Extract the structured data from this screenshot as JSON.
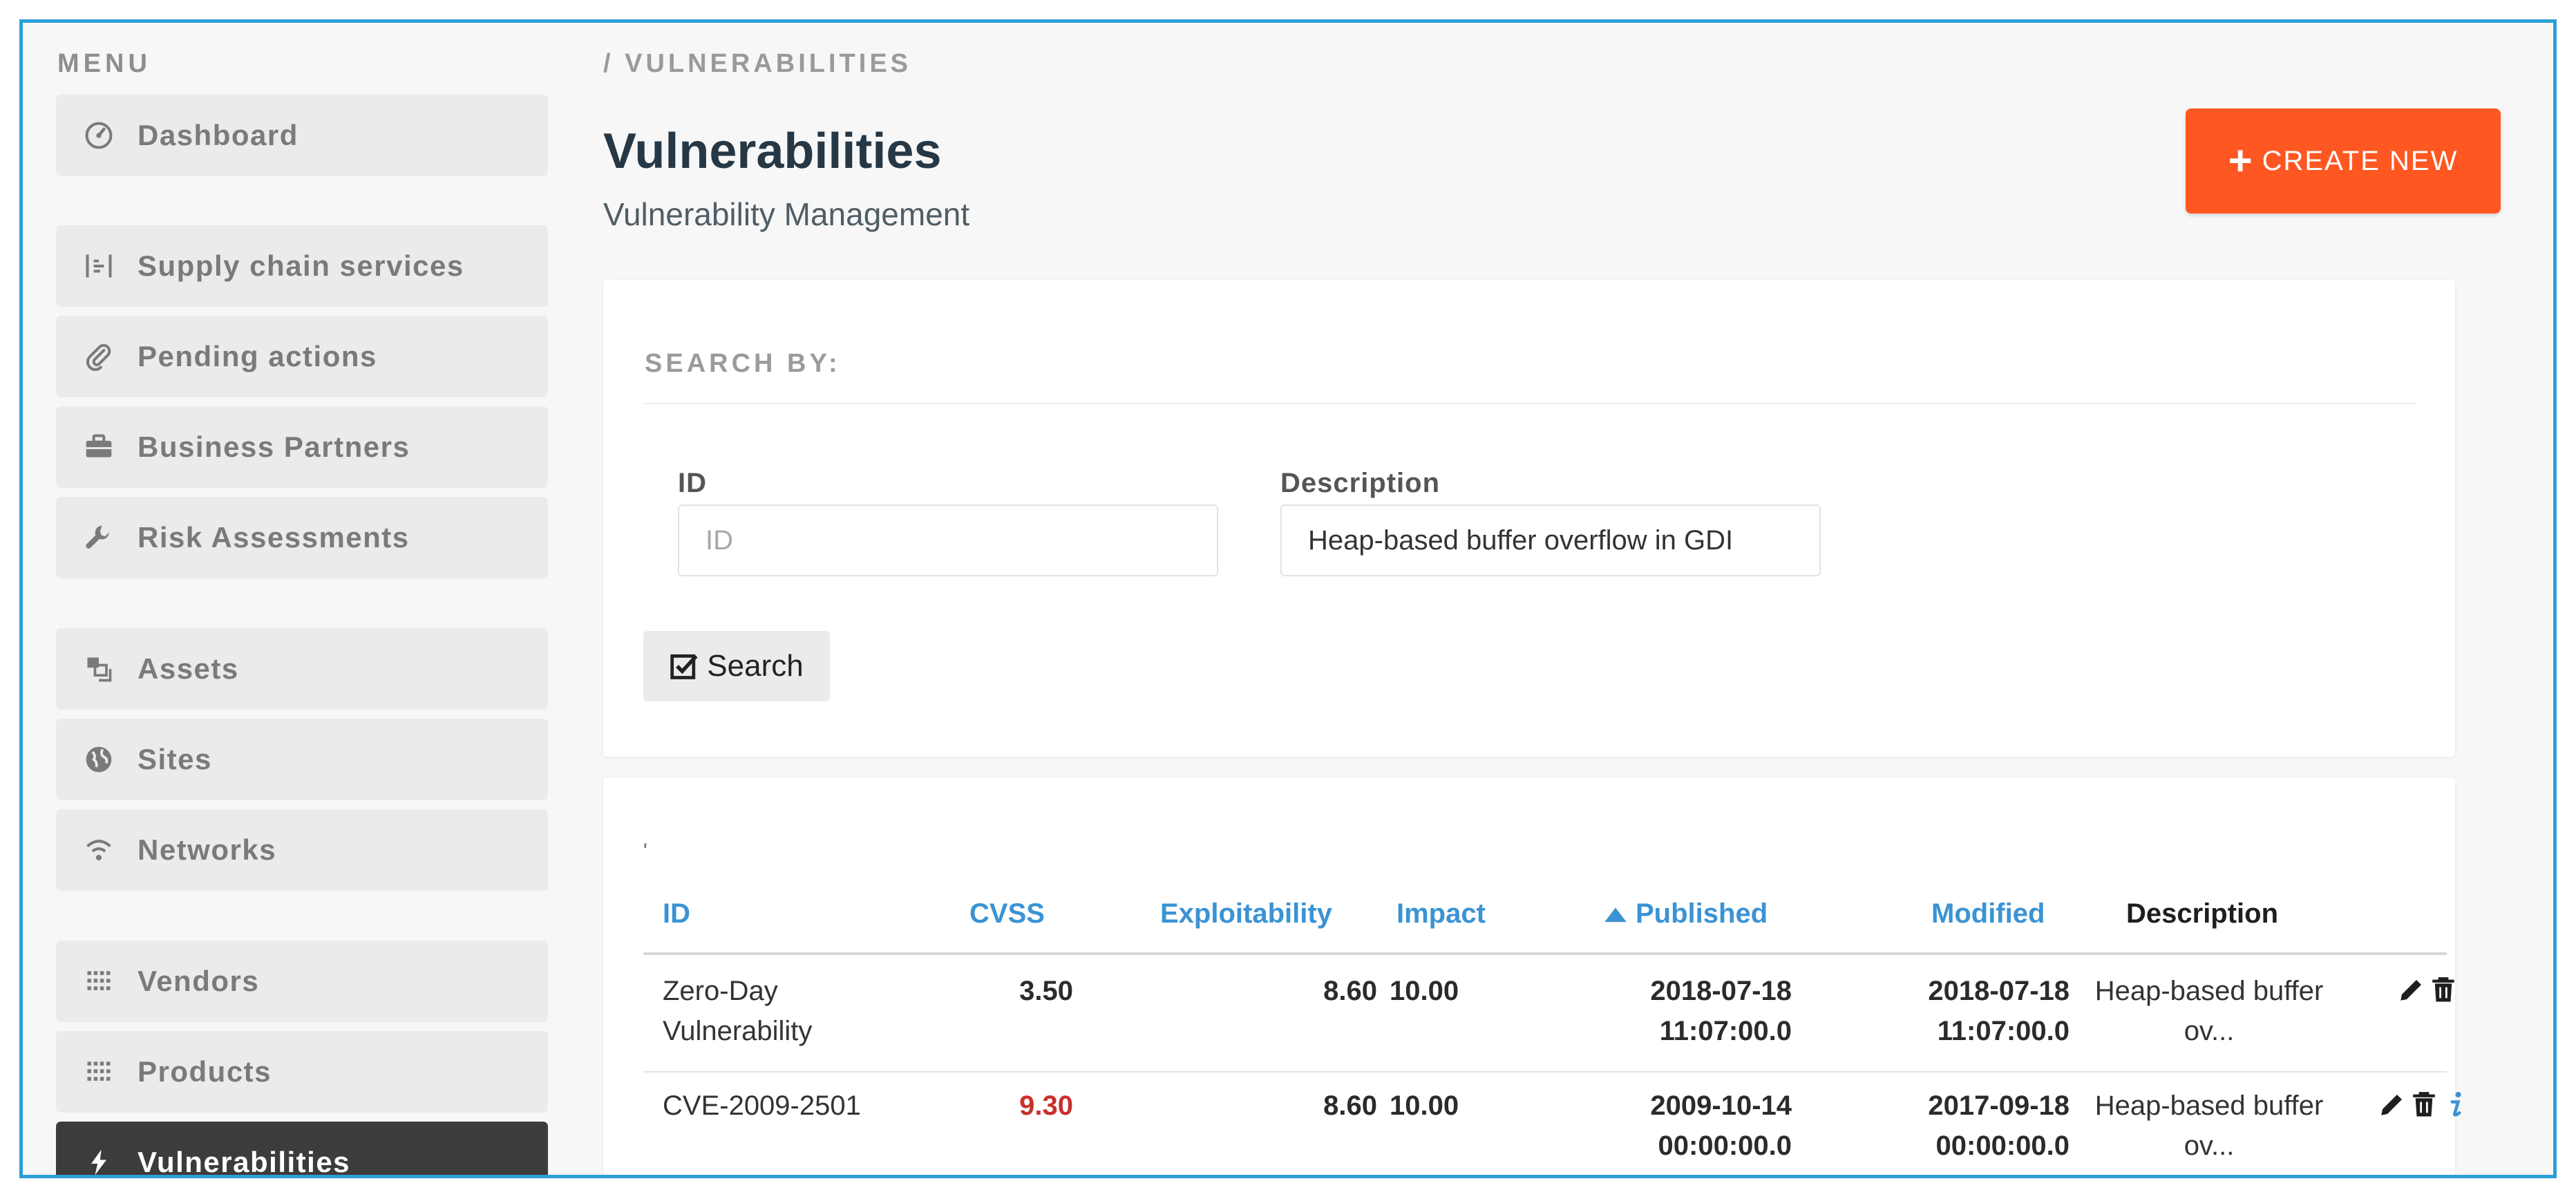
{
  "sidebar": {
    "title": "MENU",
    "items": [
      {
        "label": "Dashboard",
        "icon": "dashboard-icon"
      },
      {
        "label": "Supply chain services",
        "icon": "supply-chain-icon"
      },
      {
        "label": "Pending actions",
        "icon": "paperclip-icon"
      },
      {
        "label": "Business Partners",
        "icon": "briefcase-icon"
      },
      {
        "label": "Risk Assessments",
        "icon": "wrench-icon"
      },
      {
        "label": "Assets",
        "icon": "assets-icon"
      },
      {
        "label": "Sites",
        "icon": "globe-icon"
      },
      {
        "label": "Networks",
        "icon": "wifi-icon"
      },
      {
        "label": "Vendors",
        "icon": "grid-icon"
      },
      {
        "label": "Products",
        "icon": "grid-icon"
      },
      {
        "label": "Vulnerabilities",
        "icon": "bolt-icon",
        "active": true
      }
    ]
  },
  "header": {
    "breadcrumb": "/ VULNERABILITIES",
    "title": "Vulnerabilities",
    "subtitle": "Vulnerability Management",
    "create_button": "CREATE NEW"
  },
  "search": {
    "title": "SEARCH BY:",
    "id_label": "ID",
    "id_placeholder": "ID",
    "id_value": "",
    "desc_label": "Description",
    "desc_value": "Heap-based buffer overflow in GDI",
    "button": "Search"
  },
  "table": {
    "marker": "'",
    "columns": [
      "ID",
      "CVSS",
      "Exploitability",
      "Impact",
      "Published",
      "Modified",
      "Description"
    ],
    "sort_column": "Published",
    "rows": [
      {
        "id": [
          "Zero-Day",
          "Vulnerability"
        ],
        "cvss": "3.50",
        "exploitability": "8.60",
        "impact": "10.00",
        "published": [
          "2018-07-18",
          "11:07:00.0"
        ],
        "modified": [
          "2018-07-18",
          "11:07:00.0"
        ],
        "description": [
          "Heap-based buffer",
          "ov..."
        ],
        "actions": [
          "edit-icon",
          "delete-icon"
        ]
      },
      {
        "id": [
          "CVE-2009-2501"
        ],
        "cvss": "9.30",
        "cvss_color": "#c9302c",
        "exploitability": "8.60",
        "impact": "10.00",
        "published": [
          "2009-10-14",
          "00:00:00.0"
        ],
        "modified": [
          "2017-09-18",
          "00:00:00.0"
        ],
        "description": [
          "Heap-based buffer",
          "ov..."
        ],
        "actions": [
          "edit-icon",
          "delete-icon",
          "info-icon"
        ]
      }
    ]
  },
  "colors": {
    "accent": "#ff5722",
    "link": "#3a93d4",
    "frame": "#2a9fd8",
    "active_sidebar": "#3c3c3c"
  }
}
